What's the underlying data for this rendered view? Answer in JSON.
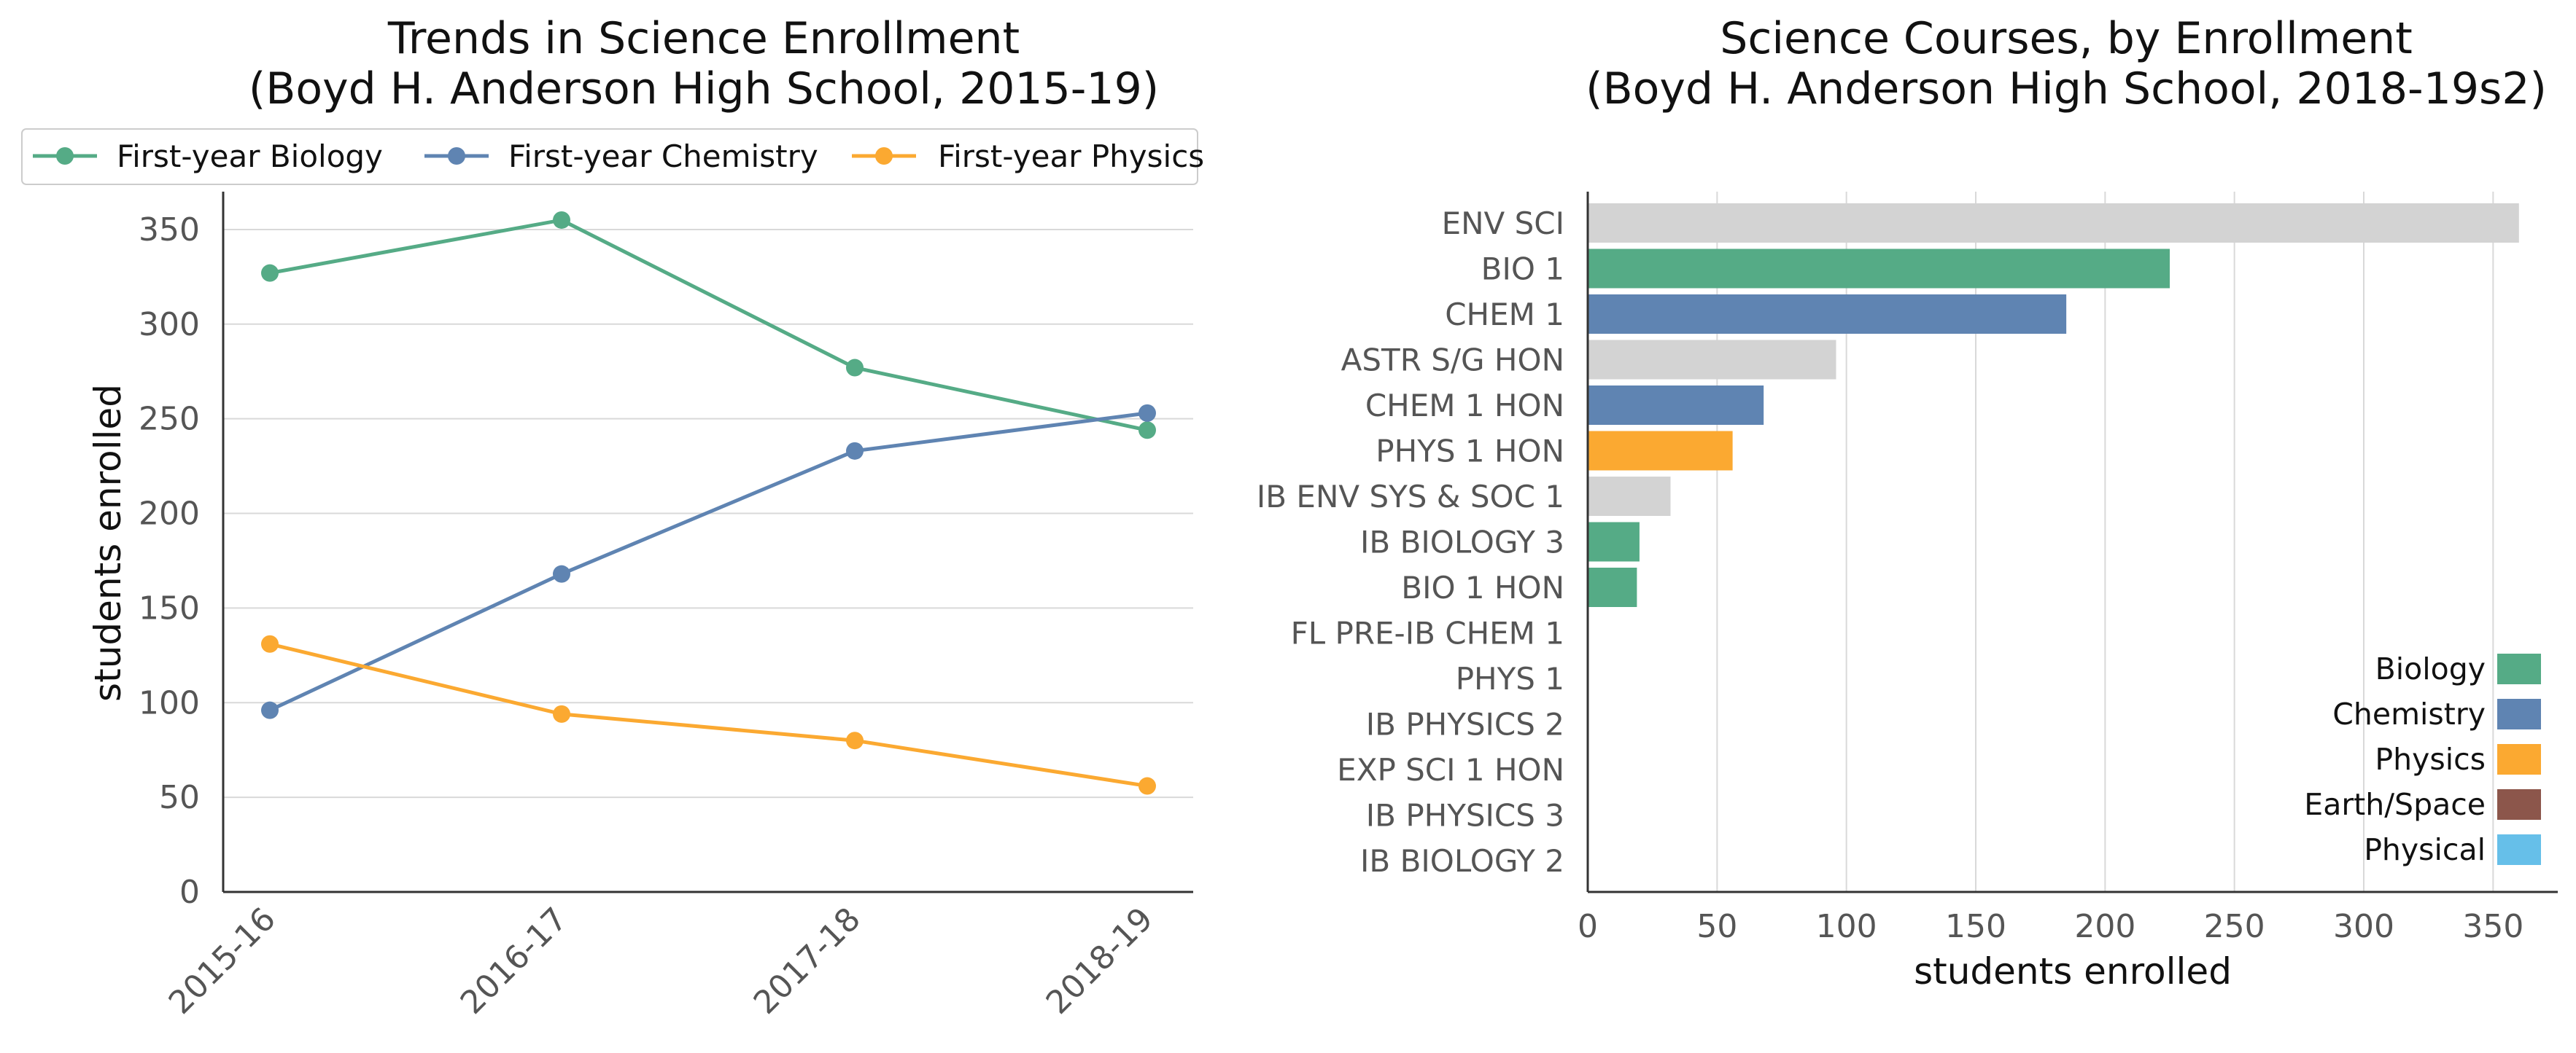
{
  "chart_data": [
    {
      "type": "line",
      "title_line1": "Trends in Science Enrollment",
      "title_line2": "(Boyd H. Anderson High School, 2015-19)",
      "xlabel": "",
      "ylabel": "students enrolled",
      "categories": [
        "2015-16",
        "2016-17",
        "2017-18",
        "2018-19"
      ],
      "ylim": [
        0,
        370
      ],
      "yticks": [
        0,
        50,
        100,
        150,
        200,
        250,
        300,
        350
      ],
      "grid": "horizontal",
      "legend_position": "top",
      "series": [
        {
          "name": "First-year Biology",
          "color": "#55ab86",
          "values": [
            327,
            355,
            277,
            244
          ]
        },
        {
          "name": "First-year Chemistry",
          "color": "#5f84b2",
          "values": [
            96,
            168,
            233,
            253
          ]
        },
        {
          "name": "First-year Physics",
          "color": "#fba931",
          "values": [
            131,
            94,
            80,
            56
          ]
        }
      ]
    },
    {
      "type": "bar",
      "orientation": "horizontal",
      "title_line1": "Science Courses, by Enrollment",
      "title_line2": "(Boyd H. Anderson High School, 2018-19s2)",
      "xlabel": "students enrolled",
      "ylabel": "",
      "xlim": [
        0,
        375
      ],
      "xticks": [
        0,
        50,
        100,
        150,
        200,
        250,
        300,
        350
      ],
      "grid": "vertical",
      "legend_position": "lower-right",
      "bars": [
        {
          "label": "ENV SCI",
          "value": 360,
          "color": "#d3d3d3"
        },
        {
          "label": "BIO 1",
          "value": 225,
          "color": "#55ab86"
        },
        {
          "label": "CHEM 1",
          "value": 185,
          "color": "#5f84b2"
        },
        {
          "label": "ASTR S/G HON",
          "value": 96,
          "color": "#d3d3d3"
        },
        {
          "label": "CHEM 1 HON",
          "value": 68,
          "color": "#5f84b2"
        },
        {
          "label": "PHYS 1 HON",
          "value": 56,
          "color": "#fba931"
        },
        {
          "label": "IB ENV SYS & SOC 1",
          "value": 32,
          "color": "#d3d3d3"
        },
        {
          "label": "IB BIOLOGY 3",
          "value": 20,
          "color": "#55ab86"
        },
        {
          "label": "BIO 1 HON",
          "value": 19,
          "color": "#55ab86"
        },
        {
          "label": "FL PRE-IB CHEM 1",
          "value": 0,
          "color": "#5f84b2"
        },
        {
          "label": "PHYS 1",
          "value": 0,
          "color": "#fba931"
        },
        {
          "label": "IB PHYSICS 2",
          "value": 0,
          "color": "#fba931"
        },
        {
          "label": "EXP SCI 1 HON",
          "value": 0,
          "color": "#d3d3d3"
        },
        {
          "label": "IB PHYSICS 3",
          "value": 0,
          "color": "#fba931"
        },
        {
          "label": "IB BIOLOGY 2",
          "value": 0,
          "color": "#55ab86"
        }
      ],
      "legend": [
        {
          "name": "Biology",
          "color": "#55ab86"
        },
        {
          "name": "Chemistry",
          "color": "#5f84b2"
        },
        {
          "name": "Physics",
          "color": "#fba931"
        },
        {
          "name": "Earth/Space",
          "color": "#8c564b"
        },
        {
          "name": "Physical",
          "color": "#66bfe9"
        }
      ]
    }
  ]
}
